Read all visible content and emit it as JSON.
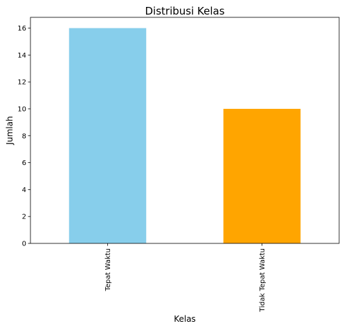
{
  "chart_data": {
    "type": "bar",
    "title": "Distribusi Kelas",
    "xlabel": "Kelas",
    "ylabel": "Jumlah",
    "categories": [
      "Tepat Waktu",
      "Tidak Tepat Waktu"
    ],
    "values": [
      16,
      10
    ],
    "colors": [
      "#87ceeb",
      "#ffa500"
    ],
    "ylim": [
      0,
      16.8
    ],
    "yticks": [
      0,
      2,
      4,
      6,
      8,
      10,
      12,
      14,
      16
    ],
    "grid": false,
    "legend": "none",
    "tick_label_rotation": 90
  }
}
